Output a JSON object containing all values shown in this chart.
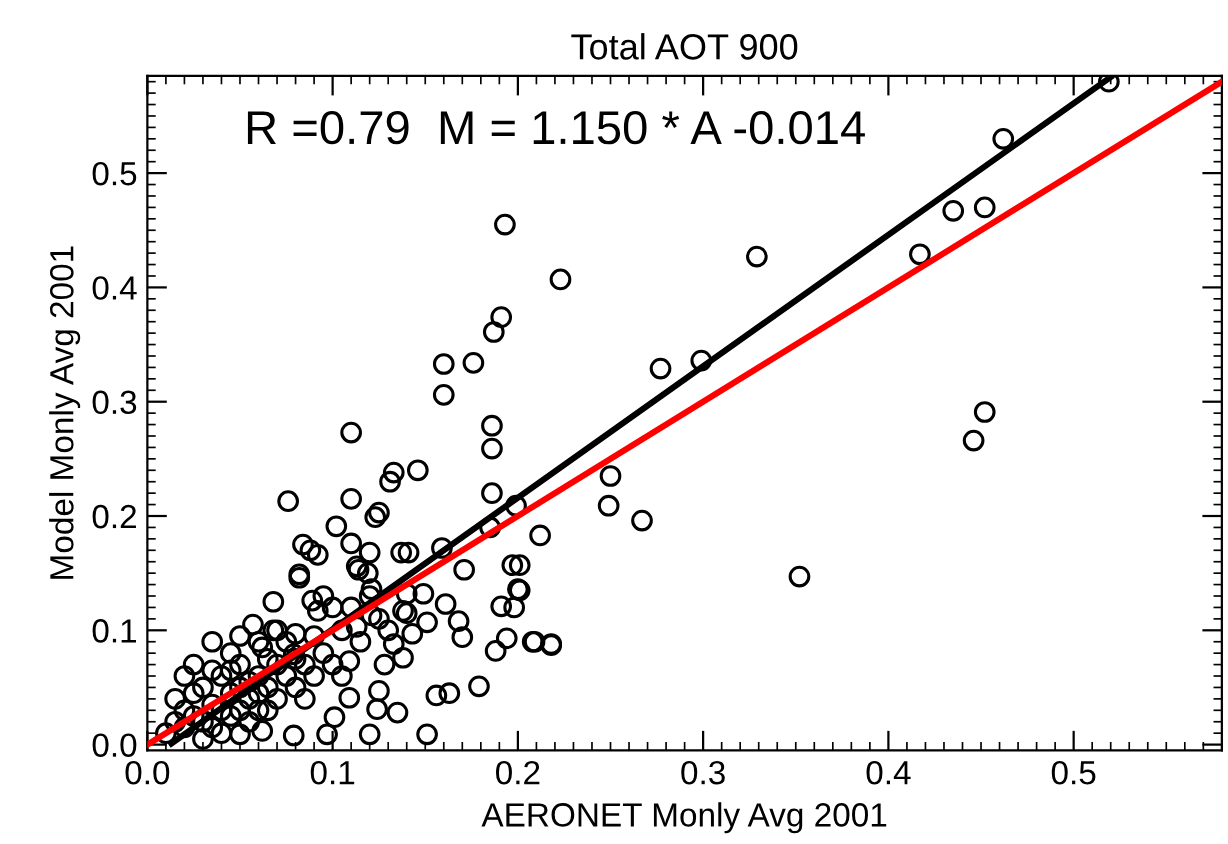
{
  "chart_data": {
    "type": "scatter",
    "title": "Total AOT 900",
    "xlabel": "AERONET Monly Avg 2001",
    "ylabel": "Model Monly Avg 2001",
    "annotations": [
      "R =0.79  M = 1.150 * A -0.014"
    ],
    "xlim": [
      0,
      0.58
    ],
    "ylim": [
      -0.005,
      0.585
    ],
    "xticks": [
      {
        "value": 0,
        "label": "0.0"
      },
      {
        "value": 0.1,
        "label": "0.1"
      },
      {
        "value": 0.2,
        "label": "0.2"
      },
      {
        "value": 0.3,
        "label": "0.3"
      },
      {
        "value": 0.4,
        "label": "0.4"
      },
      {
        "value": 0.5,
        "label": "0.5"
      }
    ],
    "yticks": [
      {
        "value": 0,
        "label": "0.0"
      },
      {
        "value": 0.1,
        "label": "0.1"
      },
      {
        "value": 0.2,
        "label": "0.2"
      },
      {
        "value": 0.3,
        "label": "0.3"
      },
      {
        "value": 0.4,
        "label": "0.4"
      },
      {
        "value": 0.5,
        "label": "0.5"
      }
    ],
    "grid": false,
    "legend": false,
    "series": [
      {
        "marker": "circle",
        "color": "#000000",
        "x": [
          0.193,
          0.223,
          0.191,
          0.187,
          0.16,
          0.176,
          0.16,
          0.277,
          0.299,
          0.11,
          0.186,
          0.186,
          0.146,
          0.133,
          0.131,
          0.186,
          0.076,
          0.11,
          0.25,
          0.249,
          0.267,
          0.125,
          0.123,
          0.199,
          0.102,
          0.212,
          0.084,
          0.11,
          0.088,
          0.092,
          0.12,
          0.137,
          0.141,
          0.159,
          0.185,
          0.171,
          0.197,
          0.114,
          0.082,
          0.435,
          0.452,
          0.417,
          0.329,
          0.462,
          0.519,
          0.452,
          0.446,
          0.352,
          0.208,
          0.218,
          0.201,
          0.201,
          0.218,
          0.209,
          0.194,
          0.188,
          0.179,
          0.198,
          0.2,
          0.191,
          0.17,
          0.168,
          0.161,
          0.151,
          0.163,
          0.156,
          0.149,
          0.151,
          0.143,
          0.138,
          0.133,
          0.128,
          0.125,
          0.135,
          0.124,
          0.12,
          0.138,
          0.14,
          0.121,
          0.121,
          0.119,
          0.113,
          0.113,
          0.109,
          0.109,
          0.101,
          0.097,
          0.092,
          0.089,
          0.082,
          0.068,
          0.068,
          0.08,
          0.079,
          0.062,
          0.057,
          0.05,
          0.079,
          0.062,
          0.02,
          0.025,
          0.03,
          0.03,
          0.035,
          0.04,
          0.04,
          0.045,
          0.05,
          0.05,
          0.055,
          0.06,
          0.06,
          0.065,
          0.07,
          0.07,
          0.075,
          0.08,
          0.085,
          0.09,
          0.095,
          0.1,
          0.105,
          0.015,
          0.01,
          0.02,
          0.025,
          0.035,
          0.045,
          0.055,
          0.065,
          0.04,
          0.03,
          0.015,
          0.05,
          0.06,
          0.075,
          0.085,
          0.09,
          0.1,
          0.105,
          0.095,
          0.11,
          0.12,
          0.115,
          0.13,
          0.125,
          0.14,
          0.035,
          0.045,
          0.055,
          0.065,
          0.07,
          0.08,
          0.025,
          0.035,
          0.045,
          0.05,
          0.06,
          0.02
        ],
        "values": [
          0.455,
          0.407,
          0.374,
          0.361,
          0.333,
          0.334,
          0.306,
          0.329,
          0.336,
          0.273,
          0.279,
          0.259,
          0.24,
          0.238,
          0.23,
          0.22,
          0.213,
          0.215,
          0.235,
          0.209,
          0.196,
          0.203,
          0.199,
          0.209,
          0.191,
          0.183,
          0.175,
          0.176,
          0.17,
          0.166,
          0.168,
          0.168,
          0.168,
          0.172,
          0.19,
          0.153,
          0.157,
          0.153,
          0.149,
          0.467,
          0.47,
          0.429,
          0.427,
          0.53,
          0.58,
          0.291,
          0.266,
          0.147,
          0.09,
          0.087,
          0.157,
          0.135,
          0.088,
          0.09,
          0.093,
          0.082,
          0.051,
          0.12,
          0.136,
          0.121,
          0.094,
          0.108,
          0.123,
          0.009,
          0.045,
          0.043,
          0.132,
          0.107,
          0.097,
          0.076,
          0.088,
          0.07,
          0.047,
          0.028,
          0.031,
          0.009,
          0.117,
          0.132,
          0.113,
          0.136,
          0.15,
          0.156,
          0.103,
          0.073,
          0.041,
          0.024,
          0.009,
          0.117,
          0.126,
          0.146,
          0.125,
          0.1,
          0.097,
          0.079,
          0.085,
          0.105,
          0.009,
          0.008,
          0.012,
          0.03,
          0.045,
          0.02,
          0.05,
          0.035,
          0.06,
          0.03,
          0.08,
          0.05,
          0.07,
          0.04,
          0.06,
          0.09,
          0.05,
          0.07,
          0.04,
          0.06,
          0.05,
          0.07,
          0.06,
          0.08,
          0.07,
          0.06,
          0.02,
          0.01,
          0.06,
          0.07,
          0.09,
          0.025,
          0.02,
          0.03,
          0.01,
          0.005,
          0.04,
          0.095,
          0.03,
          0.09,
          0.04,
          0.095,
          0.12,
          0.1,
          0.13,
          0.12,
          0.13,
          0.09,
          0.1,
          0.11,
          0.115,
          0.065,
          0.045,
          0.055,
          0.075,
          0.1,
          0.075,
          0.025,
          0.015,
          0.065,
          0.03,
          0.045,
          0.015
        ]
      },
      {
        "type": "line",
        "marker": "none",
        "line_style": "solid",
        "color": "#000000",
        "x": [
          0.013,
          0.52
        ],
        "values": [
          0.001,
          0.584
        ]
      },
      {
        "type": "line",
        "marker": "none",
        "line_style": "solid",
        "color": "#ff0000",
        "x": [
          0,
          0.58
        ],
        "values": [
          0,
          0.58
        ]
      }
    ]
  }
}
